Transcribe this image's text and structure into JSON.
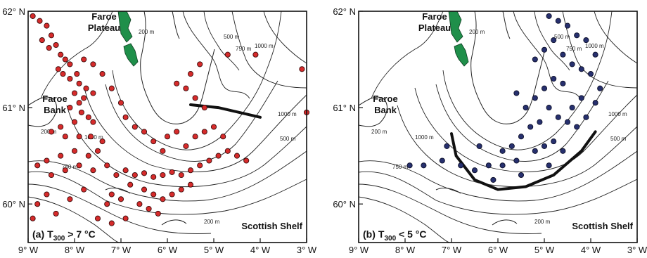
{
  "panels": [
    {
      "id": "a",
      "panel_tag": "(a)",
      "condition_symbol": "T",
      "condition_subscript": "300",
      "condition_text": " > 7 °C",
      "marker_color": "#d62b2b",
      "regions": [
        "Faroe",
        "Plateau",
        "Faroe",
        "Bank",
        "Scottish Shelf"
      ],
      "x_ticks": [
        "9° W",
        "8° W",
        "7° W",
        "6° W",
        "5° W",
        "4° W",
        "3° W"
      ],
      "y_ticks": [
        "62° N",
        "61° N",
        "60° N"
      ]
    },
    {
      "id": "b",
      "panel_tag": "(b)",
      "condition_symbol": "T",
      "condition_subscript": "300",
      "condition_text": " < 5 °C",
      "marker_color": "#27306e",
      "regions": [
        "Faroe",
        "Plateau",
        "Faroe",
        "Bank",
        "Scottish Shelf"
      ],
      "x_ticks": [
        "9° W",
        "8° W",
        "7° W",
        "6° W",
        "5° W",
        "4° W",
        "3° W"
      ],
      "y_ticks": [
        "62° N",
        "61° N",
        "60° N"
      ]
    }
  ],
  "contour_labels": [
    "200 m",
    "500 m",
    "750 m",
    "1000 m"
  ],
  "chart_data": [
    {
      "type": "scatter",
      "panel": "a",
      "xlim": [
        -9,
        -3
      ],
      "ylim": [
        59.6,
        62.0
      ],
      "front_line": {
        "lon": [
          -5.5,
          -4.9,
          -4.0
        ],
        "lat": [
          61.03,
          61.0,
          60.9
        ]
      },
      "points": [
        [
          -8.9,
          61.95
        ],
        [
          -8.75,
          61.9
        ],
        [
          -8.6,
          61.85
        ],
        [
          -8.7,
          61.7
        ],
        [
          -8.5,
          61.75
        ],
        [
          -8.55,
          61.62
        ],
        [
          -8.4,
          61.65
        ],
        [
          -8.3,
          61.55
        ],
        [
          -8.2,
          61.5
        ],
        [
          -8.1,
          61.45
        ],
        [
          -8.35,
          61.4
        ],
        [
          -8.25,
          61.35
        ],
        [
          -8.1,
          61.3
        ],
        [
          -7.95,
          61.35
        ],
        [
          -7.9,
          61.25
        ],
        [
          -8.0,
          61.15
        ],
        [
          -7.8,
          61.1
        ],
        [
          -7.75,
          61.2
        ],
        [
          -7.6,
          61.15
        ],
        [
          -7.9,
          61.05
        ],
        [
          -8.1,
          61.0
        ],
        [
          -7.85,
          60.95
        ],
        [
          -7.7,
          60.9
        ],
        [
          -7.6,
          60.85
        ],
        [
          -8.0,
          60.85
        ],
        [
          -8.3,
          60.8
        ],
        [
          -8.5,
          60.75
        ],
        [
          -8.2,
          60.7
        ],
        [
          -7.9,
          60.7
        ],
        [
          -7.65,
          60.7
        ],
        [
          -7.4,
          60.65
        ],
        [
          -7.5,
          60.55
        ],
        [
          -7.7,
          60.5
        ],
        [
          -8.0,
          60.55
        ],
        [
          -8.3,
          60.5
        ],
        [
          -8.6,
          60.45
        ],
        [
          -8.8,
          60.4
        ],
        [
          -8.5,
          60.3
        ],
        [
          -8.2,
          60.35
        ],
        [
          -7.9,
          60.4
        ],
        [
          -7.6,
          60.35
        ],
        [
          -7.3,
          60.4
        ],
        [
          -7.1,
          60.3
        ],
        [
          -6.9,
          60.35
        ],
        [
          -6.7,
          60.3
        ],
        [
          -6.5,
          60.32
        ],
        [
          -6.3,
          60.28
        ],
        [
          -6.1,
          60.3
        ],
        [
          -5.9,
          60.33
        ],
        [
          -5.7,
          60.3
        ],
        [
          -5.5,
          60.35
        ],
        [
          -5.3,
          60.4
        ],
        [
          -5.1,
          60.45
        ],
        [
          -4.9,
          60.5
        ],
        [
          -4.7,
          60.55
        ],
        [
          -4.5,
          60.5
        ],
        [
          -4.3,
          60.45
        ],
        [
          -6.8,
          60.2
        ],
        [
          -6.5,
          60.15
        ],
        [
          -6.3,
          60.1
        ],
        [
          -6.1,
          60.05
        ],
        [
          -5.9,
          60.1
        ],
        [
          -5.7,
          60.15
        ],
        [
          -5.5,
          60.2
        ],
        [
          -6.6,
          60.0
        ],
        [
          -6.4,
          59.95
        ],
        [
          -6.2,
          59.9
        ],
        [
          -7.2,
          60.1
        ],
        [
          -7.0,
          60.05
        ],
        [
          -7.3,
          60.0
        ],
        [
          -7.5,
          59.85
        ],
        [
          -7.2,
          59.8
        ],
        [
          -6.9,
          59.85
        ],
        [
          -5.6,
          60.6
        ],
        [
          -5.4,
          60.7
        ],
        [
          -5.2,
          60.75
        ],
        [
          -5.0,
          60.8
        ],
        [
          -4.8,
          60.7
        ],
        [
          -5.8,
          60.75
        ],
        [
          -6.0,
          60.7
        ],
        [
          -5.2,
          61.0
        ],
        [
          -5.4,
          61.1
        ],
        [
          -5.6,
          61.2
        ],
        [
          -5.8,
          61.25
        ],
        [
          -5.5,
          61.35
        ],
        [
          -5.3,
          61.45
        ],
        [
          -4.7,
          61.55
        ],
        [
          -4.1,
          61.55
        ],
        [
          -3.1,
          61.4
        ],
        [
          -3.0,
          60.95
        ],
        [
          -7.8,
          61.5
        ],
        [
          -7.6,
          61.45
        ],
        [
          -7.4,
          61.35
        ],
        [
          -7.2,
          61.2
        ],
        [
          -7.0,
          61.05
        ],
        [
          -6.9,
          60.9
        ],
        [
          -6.7,
          60.8
        ],
        [
          -6.5,
          60.75
        ],
        [
          -6.3,
          60.65
        ],
        [
          -6.1,
          60.55
        ],
        [
          -8.6,
          60.1
        ],
        [
          -8.8,
          60.0
        ],
        [
          -8.9,
          59.85
        ],
        [
          -8.4,
          59.9
        ],
        [
          -8.1,
          60.05
        ],
        [
          -7.8,
          60.15
        ]
      ]
    },
    {
      "type": "scatter",
      "panel": "b",
      "xlim": [
        -9,
        -3
      ],
      "ylim": [
        59.6,
        62.0
      ],
      "front_line": {
        "lon": [
          -7.0,
          -6.9,
          -6.5,
          -6.0,
          -5.4,
          -4.8,
          -4.2,
          -3.9
        ],
        "lat": [
          60.73,
          60.5,
          60.25,
          60.15,
          60.18,
          60.3,
          60.55,
          60.75
        ]
      },
      "points": [
        [
          -4.9,
          61.95
        ],
        [
          -4.7,
          61.9
        ],
        [
          -4.5,
          61.85
        ],
        [
          -4.3,
          61.75
        ],
        [
          -4.1,
          61.7
        ],
        [
          -3.9,
          61.55
        ],
        [
          -4.8,
          61.7
        ],
        [
          -5.0,
          61.6
        ],
        [
          -5.2,
          61.5
        ],
        [
          -4.6,
          61.55
        ],
        [
          -4.4,
          61.45
        ],
        [
          -4.2,
          61.4
        ],
        [
          -4.0,
          61.35
        ],
        [
          -3.8,
          61.2
        ],
        [
          -4.6,
          61.25
        ],
        [
          -4.8,
          61.3
        ],
        [
          -5.0,
          61.2
        ],
        [
          -5.2,
          61.1
        ],
        [
          -5.4,
          61.0
        ],
        [
          -4.9,
          61.0
        ],
        [
          -4.7,
          60.9
        ],
        [
          -4.5,
          60.85
        ],
        [
          -4.3,
          60.8
        ],
        [
          -4.1,
          60.9
        ],
        [
          -5.1,
          60.85
        ],
        [
          -5.3,
          60.8
        ],
        [
          -5.5,
          60.7
        ],
        [
          -5.7,
          60.6
        ],
        [
          -5.9,
          60.55
        ],
        [
          -5.2,
          60.55
        ],
        [
          -5.0,
          60.6
        ],
        [
          -4.8,
          60.65
        ],
        [
          -4.6,
          60.55
        ],
        [
          -5.6,
          60.45
        ],
        [
          -5.9,
          60.4
        ],
        [
          -6.2,
          60.4
        ],
        [
          -6.5,
          60.35
        ],
        [
          -6.8,
          60.4
        ],
        [
          -7.2,
          60.45
        ],
        [
          -7.6,
          60.4
        ],
        [
          -7.9,
          60.4
        ],
        [
          -6.1,
          60.25
        ],
        [
          -5.5,
          60.3
        ],
        [
          -4.9,
          60.4
        ],
        [
          -3.9,
          61.05
        ],
        [
          -4.2,
          61.1
        ],
        [
          -4.4,
          61.0
        ],
        [
          -5.6,
          61.15
        ],
        [
          -7.1,
          60.6
        ],
        [
          -6.4,
          60.6
        ]
      ]
    }
  ]
}
